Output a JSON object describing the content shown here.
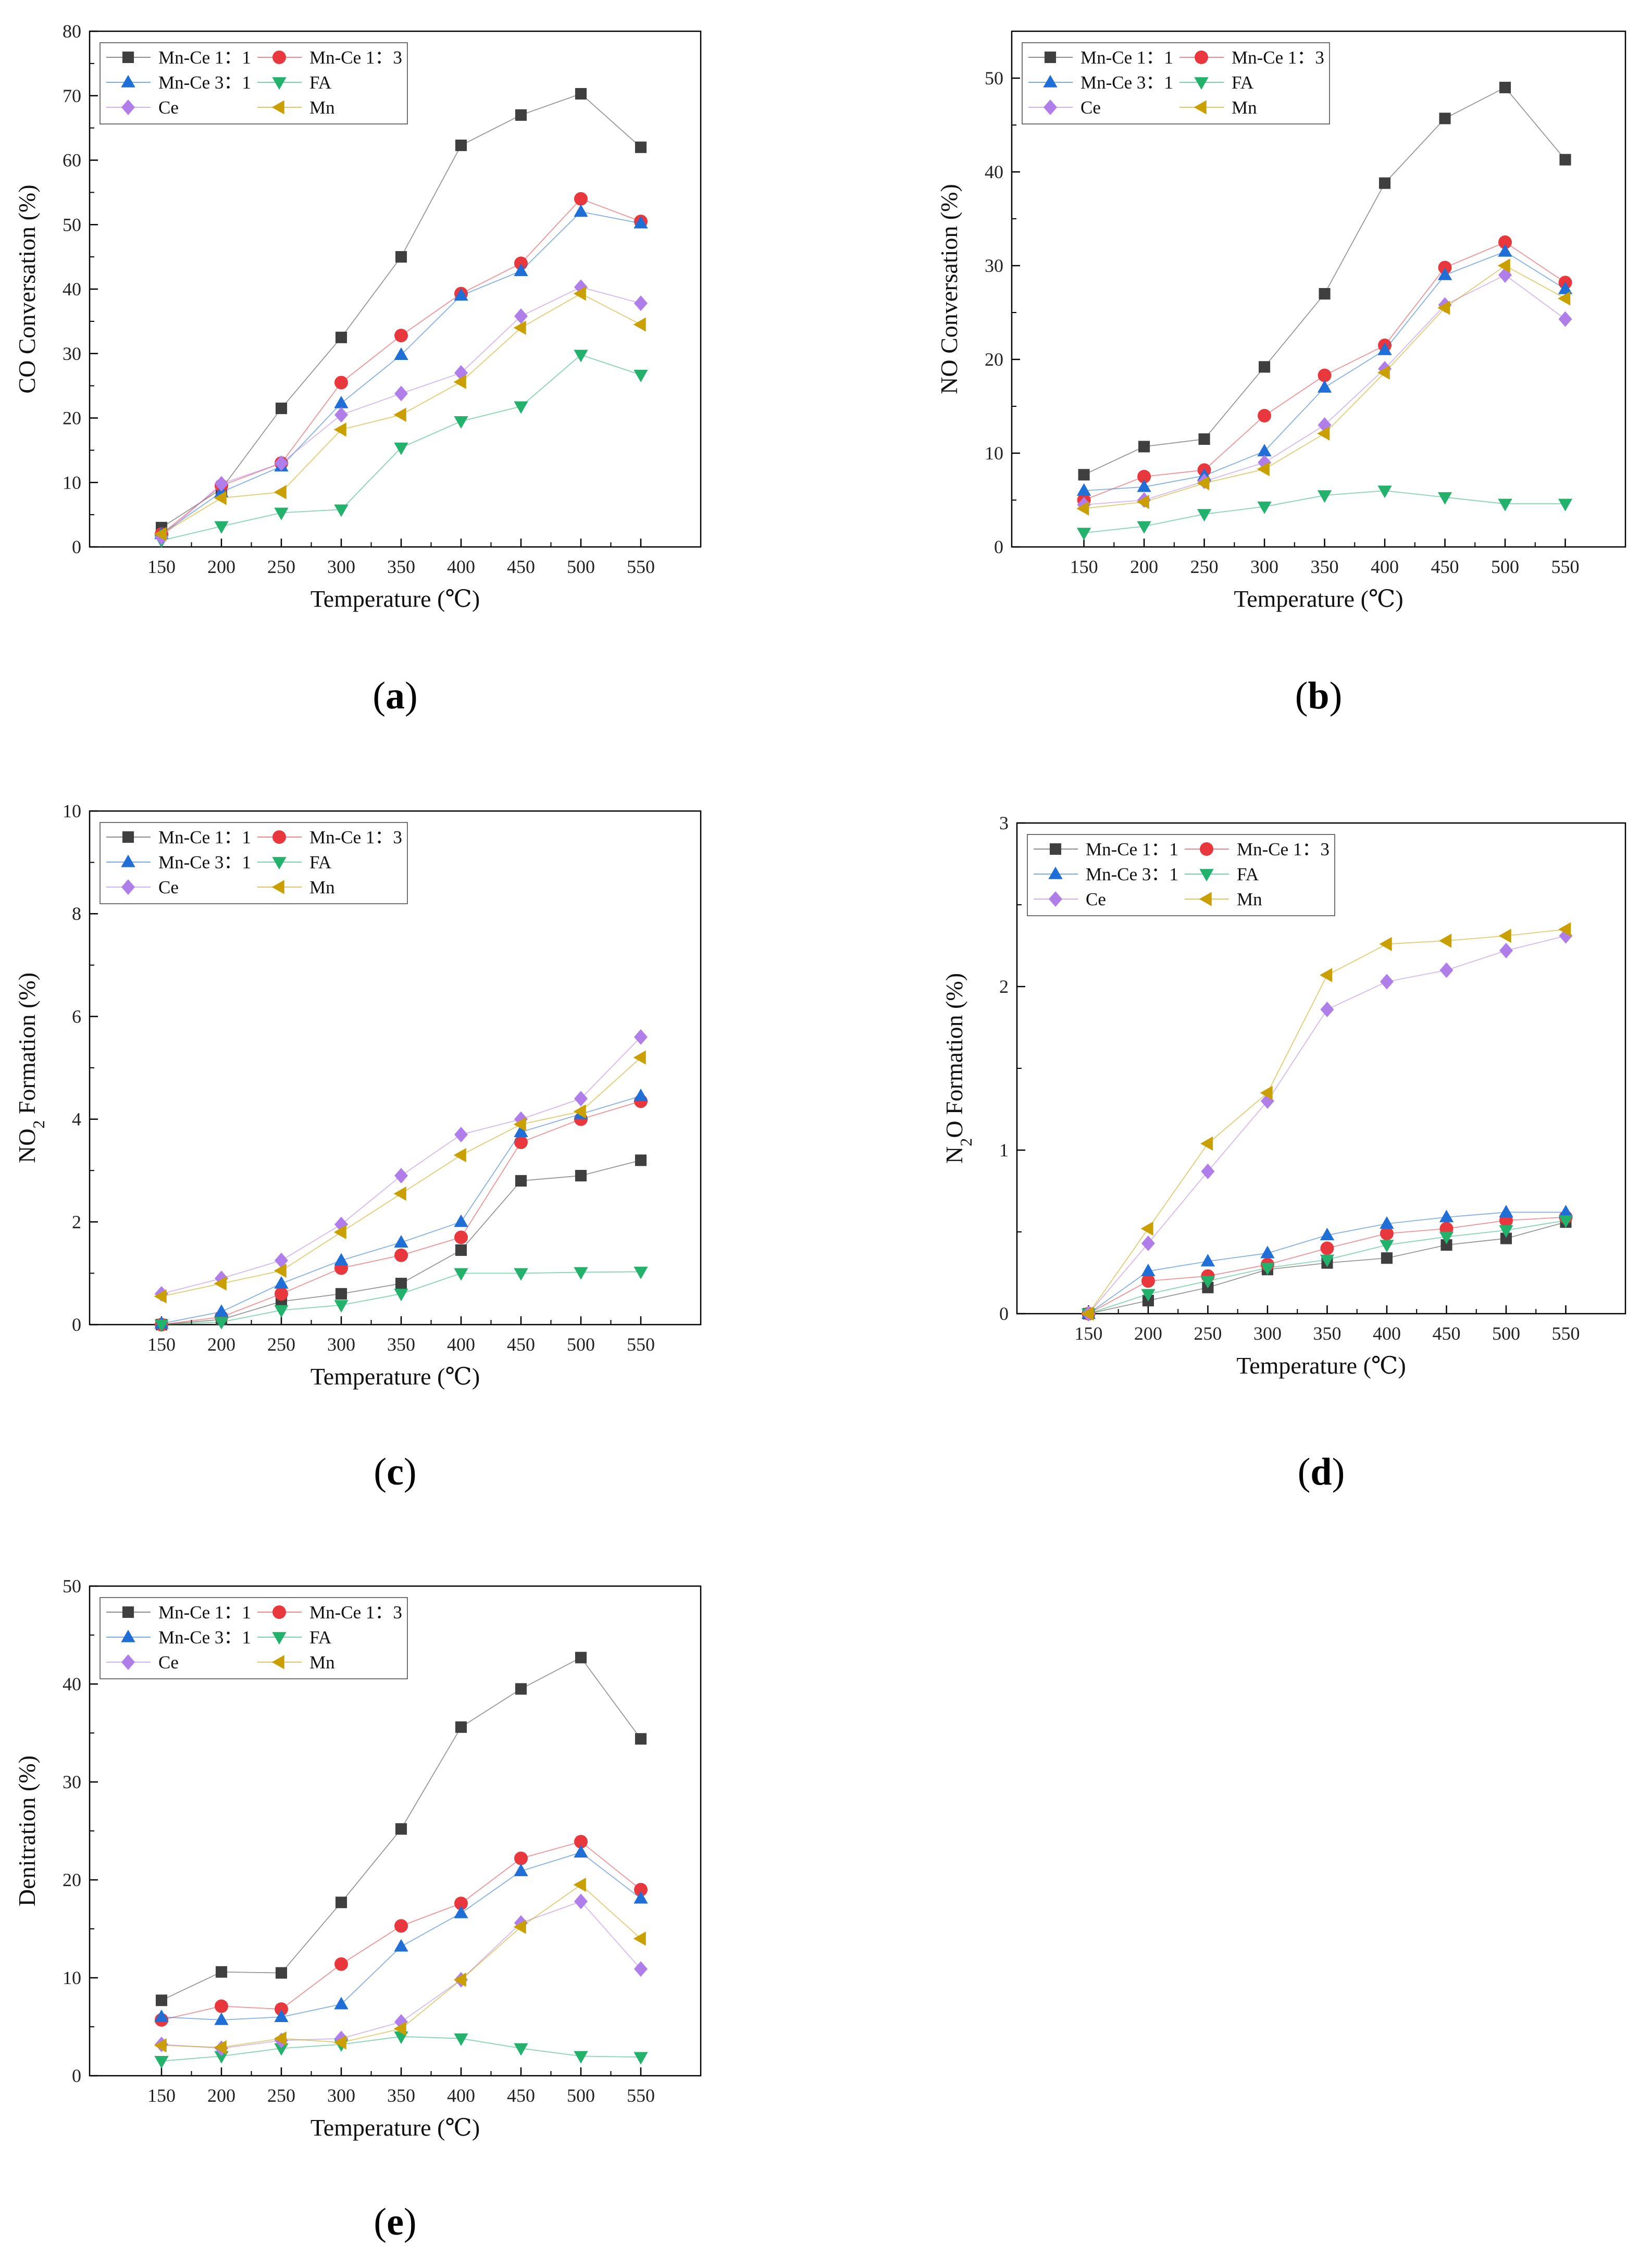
{
  "series_styles": [
    {
      "name": "Mn-Ce 1：1",
      "color": "#3f3f3f",
      "marker": "square"
    },
    {
      "name": "Mn-Ce 1：3",
      "color": "#e8383d",
      "marker": "circle"
    },
    {
      "name": "Mn-Ce 3：1",
      "color": "#1f6fd6",
      "marker": "triangle-up"
    },
    {
      "name": "FA",
      "color": "#23b26b",
      "marker": "triangle-down"
    },
    {
      "name": "Ce",
      "color": "#b07ee8",
      "marker": "diamond"
    },
    {
      "name": "Mn",
      "color": "#c9a000",
      "marker": "triangle-left"
    }
  ],
  "chart_data": [
    {
      "type": "line",
      "panel_label": "(a)",
      "title": "",
      "xlabel": "Temperature (℃)",
      "ylabel": "CO Conversation (%)",
      "x": [
        150,
        200,
        250,
        300,
        350,
        400,
        450,
        500,
        550
      ],
      "xlim": [
        90,
        600
      ],
      "ylim": [
        0,
        80
      ],
      "yticks": [
        0,
        10,
        20,
        30,
        40,
        50,
        60,
        70,
        80
      ],
      "legend_position": "top-left",
      "series": [
        {
          "name": "Mn-Ce 1：1",
          "values": [
            3,
            9,
            21.5,
            32.5,
            45,
            62.3,
            67,
            70.3,
            62
          ]
        },
        {
          "name": "Mn-Ce 1：3",
          "values": [
            2,
            9.5,
            13,
            25.5,
            32.8,
            39.3,
            44,
            54,
            50.5
          ]
        },
        {
          "name": "Mn-Ce 3：1",
          "values": [
            2,
            8.5,
            12.5,
            22.3,
            29.8,
            39,
            42.8,
            52,
            50.2
          ]
        },
        {
          "name": "FA",
          "values": [
            1,
            3.2,
            5.3,
            5.8,
            15.4,
            19.5,
            21.8,
            29.8,
            26.7
          ]
        },
        {
          "name": "Ce",
          "values": [
            1.5,
            9.8,
            13,
            20.5,
            23.8,
            27,
            35.8,
            40.3,
            37.8
          ]
        },
        {
          "name": "Mn",
          "values": [
            2,
            7.6,
            8.5,
            18.2,
            20.5,
            25.6,
            34,
            39.3,
            34.5
          ]
        }
      ]
    },
    {
      "type": "line",
      "panel_label": "(b)",
      "title": "",
      "xlabel": "Temperature (℃)",
      "ylabel": "NO Conversation (%)",
      "x": [
        150,
        200,
        250,
        300,
        350,
        400,
        450,
        500,
        550
      ],
      "xlim": [
        90,
        600
      ],
      "ylim": [
        0,
        55
      ],
      "yticks": [
        0,
        10,
        20,
        30,
        40,
        50
      ],
      "legend_position": "top-left",
      "series": [
        {
          "name": "Mn-Ce 1：1",
          "values": [
            7.7,
            10.7,
            11.5,
            19.2,
            27,
            38.8,
            45.7,
            49,
            41.3
          ]
        },
        {
          "name": "Mn-Ce 1：3",
          "values": [
            5,
            7.5,
            8.2,
            14,
            18.3,
            21.5,
            29.8,
            32.5,
            28.2
          ]
        },
        {
          "name": "Mn-Ce 3：1",
          "values": [
            6,
            6.4,
            7.6,
            10.2,
            17,
            21,
            29,
            31.5,
            27.5
          ]
        },
        {
          "name": "FA",
          "values": [
            1.5,
            2.2,
            3.5,
            4.3,
            5.5,
            6,
            5.3,
            4.6,
            4.6
          ]
        },
        {
          "name": "Ce",
          "values": [
            4.5,
            5,
            7,
            9,
            13,
            19,
            25.8,
            29,
            24.3
          ]
        },
        {
          "name": "Mn",
          "values": [
            4.1,
            4.8,
            6.8,
            8.3,
            12.1,
            18.6,
            25.5,
            30,
            26.5
          ]
        }
      ]
    },
    {
      "type": "line",
      "panel_label": "(c)",
      "title": "",
      "xlabel": "Temperature (℃)",
      "ylabel": "NO₂ Formation (%)",
      "x": [
        150,
        200,
        250,
        300,
        350,
        400,
        450,
        500,
        550
      ],
      "xlim": [
        90,
        600
      ],
      "ylim": [
        0,
        10
      ],
      "yticks": [
        0,
        2,
        4,
        6,
        8,
        10
      ],
      "legend_position": "top-left",
      "series": [
        {
          "name": "Mn-Ce 1：1",
          "values": [
            0,
            0.1,
            0.45,
            0.6,
            0.8,
            1.45,
            2.8,
            2.9,
            3.2
          ]
        },
        {
          "name": "Mn-Ce 1：3",
          "values": [
            0,
            0.15,
            0.6,
            1.1,
            1.35,
            1.7,
            3.55,
            4,
            4.35
          ]
        },
        {
          "name": "Mn-Ce 3：1",
          "values": [
            0.02,
            0.25,
            0.8,
            1.25,
            1.6,
            2,
            3.75,
            4.1,
            4.45
          ]
        },
        {
          "name": "FA",
          "values": [
            0,
            0.05,
            0.28,
            0.38,
            0.6,
            1,
            1,
            1.02,
            1.03
          ]
        },
        {
          "name": "Ce",
          "values": [
            0.6,
            0.9,
            1.25,
            1.95,
            2.9,
            3.7,
            4,
            4.4,
            5.6
          ]
        },
        {
          "name": "Mn",
          "values": [
            0.55,
            0.8,
            1.05,
            1.8,
            2.55,
            3.3,
            3.9,
            4.15,
            5.2
          ]
        }
      ]
    },
    {
      "type": "line",
      "panel_label": "(d)",
      "title": "",
      "xlabel": "Temperature (℃)",
      "ylabel": "N₂O Formation (%)",
      "x": [
        150,
        200,
        250,
        300,
        350,
        400,
        450,
        500,
        550
      ],
      "xlim": [
        90,
        600
      ],
      "ylim": [
        0,
        3
      ],
      "yticks": [
        0,
        1,
        2,
        3
      ],
      "legend_position": "top-left",
      "series": [
        {
          "name": "Mn-Ce 1：1",
          "values": [
            0,
            0.08,
            0.16,
            0.27,
            0.31,
            0.34,
            0.42,
            0.46,
            0.56
          ]
        },
        {
          "name": "Mn-Ce 1：3",
          "values": [
            0,
            0.2,
            0.23,
            0.3,
            0.4,
            0.49,
            0.52,
            0.57,
            0.59
          ]
        },
        {
          "name": "Mn-Ce 3：1",
          "values": [
            0,
            0.26,
            0.32,
            0.37,
            0.48,
            0.55,
            0.59,
            0.62,
            0.62
          ]
        },
        {
          "name": "FA",
          "values": [
            0,
            0.12,
            0.2,
            0.28,
            0.33,
            0.42,
            0.47,
            0.51,
            0.57
          ]
        },
        {
          "name": "Ce",
          "values": [
            0,
            0.43,
            0.87,
            1.3,
            1.86,
            2.03,
            2.1,
            2.22,
            2.31
          ]
        },
        {
          "name": "Mn",
          "values": [
            0,
            0.52,
            1.04,
            1.35,
            2.07,
            2.26,
            2.28,
            2.31,
            2.35
          ]
        }
      ]
    },
    {
      "type": "line",
      "panel_label": "(e)",
      "title": "",
      "xlabel": "Temperature (℃)",
      "ylabel": "Denitration (%)",
      "x": [
        150,
        200,
        250,
        300,
        350,
        400,
        450,
        500,
        550
      ],
      "xlim": [
        90,
        600
      ],
      "ylim": [
        0,
        50
      ],
      "yticks": [
        0,
        10,
        20,
        30,
        40,
        50
      ],
      "legend_position": "top-left",
      "series": [
        {
          "name": "Mn-Ce 1：1",
          "values": [
            7.7,
            10.6,
            10.5,
            17.7,
            25.2,
            35.6,
            39.5,
            42.7,
            34.4
          ]
        },
        {
          "name": "Mn-Ce 1：3",
          "values": [
            5.7,
            7.1,
            6.8,
            11.4,
            15.3,
            17.6,
            22.2,
            23.9,
            19
          ]
        },
        {
          "name": "Mn-Ce 3：1",
          "values": [
            6,
            5.7,
            6,
            7.3,
            13.2,
            16.6,
            20.9,
            22.8,
            18.1
          ]
        },
        {
          "name": "FA",
          "values": [
            1.5,
            2,
            2.8,
            3.2,
            4,
            3.8,
            2.8,
            2,
            1.9
          ]
        },
        {
          "name": "Ce",
          "values": [
            3.2,
            2.8,
            3.6,
            3.8,
            5.5,
            9.8,
            15.6,
            17.8,
            10.9
          ]
        },
        {
          "name": "Mn",
          "values": [
            3.1,
            2.9,
            3.8,
            3.4,
            4.8,
            9.8,
            15.2,
            19.5,
            14
          ]
        }
      ]
    }
  ]
}
